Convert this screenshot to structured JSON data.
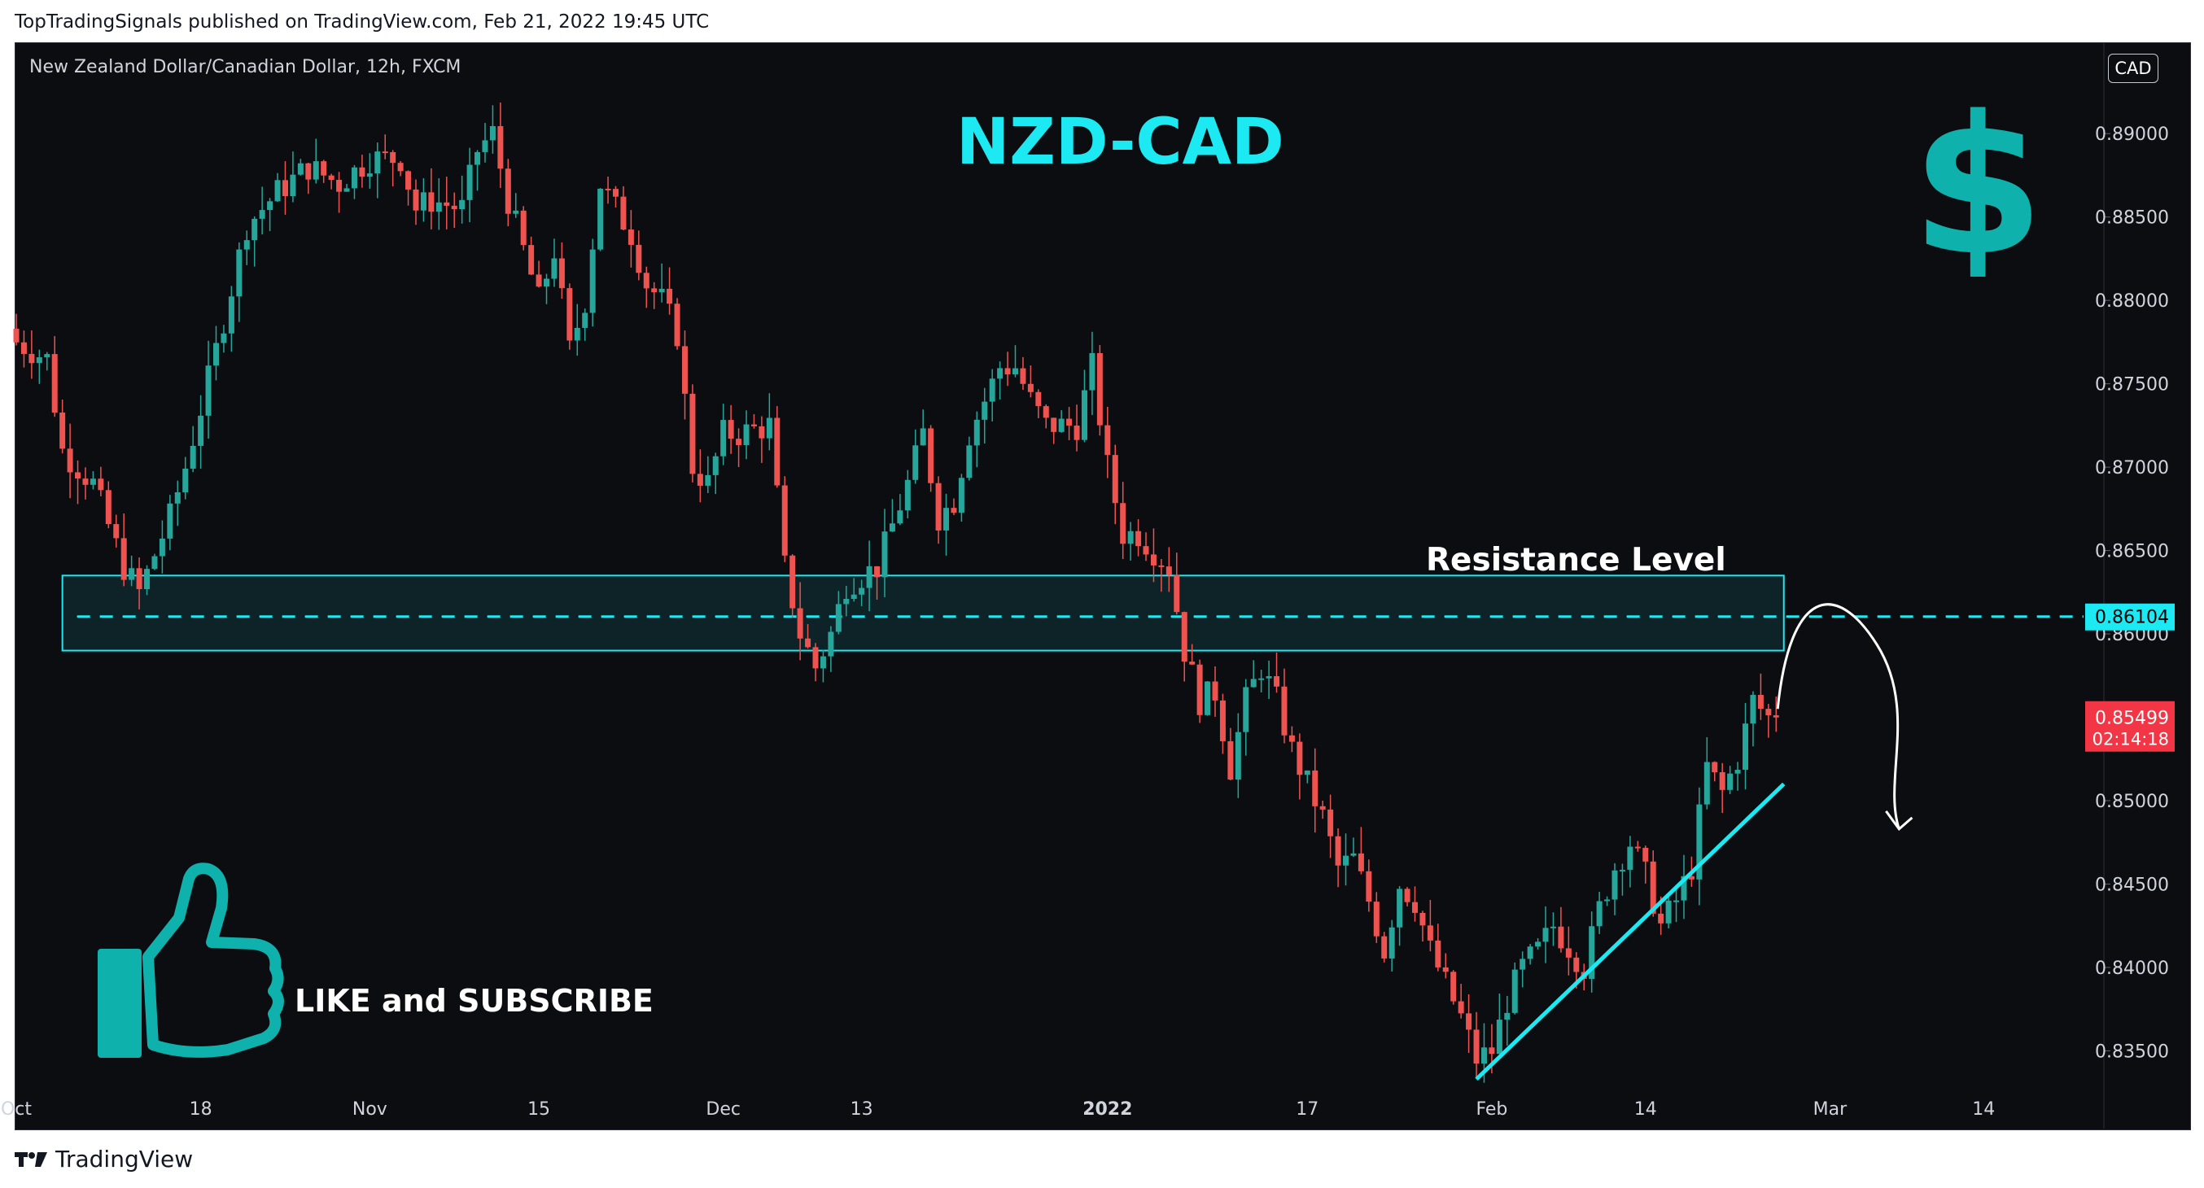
{
  "publisher_caption": "TopTradingSignals published on TradingView.com, Feb 21, 2022 19:45 UTC",
  "pair_title": "New Zealand Dollar/Canadian Dollar, 12h, FXCM",
  "currency_badge": "CAD",
  "big_title": "NZD-CAD",
  "resistance_label": "Resistance Level",
  "like_label": "LIKE and SUBSCRIBE",
  "footer_brand": "TradingView",
  "price_tags": {
    "resistance_price": "0.86104",
    "last_price": "0.85499",
    "countdown": "02:14:18"
  },
  "colors": {
    "background": "#0c0d10",
    "up_candle": "#26a69a",
    "down_candle": "#ef5350",
    "accent_cyan": "#1de9f2",
    "teal_icon": "#0fb1ad",
    "last_price_tag": "#f23645"
  },
  "chart_data": {
    "type": "candlestick",
    "title": "NZD-CAD",
    "subtitle": "New Zealand Dollar/Canadian Dollar, 12h, FXCM",
    "ylim": [
      0.8318,
      0.8945
    ],
    "y_ticks": [
      "0.89000",
      "0.88500",
      "0.88000",
      "0.87500",
      "0.87000",
      "0.86500",
      "0.86000",
      "0.85500",
      "0.85000",
      "0.84500",
      "0.84000",
      "0.83500"
    ],
    "y_tick_values": [
      0.89,
      0.885,
      0.88,
      0.875,
      0.87,
      0.865,
      0.86,
      0.855,
      0.85,
      0.845,
      0.84,
      0.835
    ],
    "x_ticks": [
      "Oct",
      "18",
      "Nov",
      "15",
      "Dec",
      "13",
      "2022",
      "17",
      "Feb",
      "14",
      "Mar",
      "14"
    ],
    "x_tick_positions": [
      0,
      12,
      23,
      34,
      46,
      55,
      71,
      84,
      96,
      106,
      118,
      128
    ],
    "x_range": [
      0,
      130
    ],
    "grid": false,
    "anchors": [
      [
        0,
        0.8775
      ],
      [
        2,
        0.8765
      ],
      [
        3,
        0.871
      ],
      [
        5,
        0.869
      ],
      [
        7,
        0.864
      ],
      [
        8,
        0.8625
      ],
      [
        10,
        0.867
      ],
      [
        11,
        0.87
      ],
      [
        13,
        0.877
      ],
      [
        15,
        0.8845
      ],
      [
        17,
        0.8865
      ],
      [
        19,
        0.888
      ],
      [
        21,
        0.887
      ],
      [
        23,
        0.8885
      ],
      [
        25,
        0.8885
      ],
      [
        26,
        0.8855
      ],
      [
        27,
        0.886
      ],
      [
        29,
        0.8855
      ],
      [
        30,
        0.889
      ],
      [
        31,
        0.89
      ],
      [
        32,
        0.886
      ],
      [
        34,
        0.88
      ],
      [
        35,
        0.883
      ],
      [
        36,
        0.877
      ],
      [
        37,
        0.88
      ],
      [
        38,
        0.887
      ],
      [
        40,
        0.884
      ],
      [
        41,
        0.881
      ],
      [
        42,
        0.88
      ],
      [
        43,
        0.878
      ],
      [
        44,
        0.87
      ],
      [
        45,
        0.869
      ],
      [
        46,
        0.872
      ],
      [
        47,
        0.872
      ],
      [
        49,
        0.8725
      ],
      [
        50,
        0.864
      ],
      [
        51,
        0.86
      ],
      [
        52,
        0.858
      ],
      [
        53,
        0.86
      ],
      [
        54,
        0.863
      ],
      [
        56,
        0.864
      ],
      [
        58,
        0.869
      ],
      [
        59,
        0.872
      ],
      [
        60,
        0.867
      ],
      [
        61,
        0.868
      ],
      [
        62,
        0.872
      ],
      [
        63,
        0.874
      ],
      [
        64,
        0.876
      ],
      [
        65,
        0.876
      ],
      [
        66,
        0.874
      ],
      [
        67,
        0.8725
      ],
      [
        69,
        0.8725
      ],
      [
        70,
        0.876
      ],
      [
        71,
        0.87
      ],
      [
        72,
        0.866
      ],
      [
        73,
        0.866
      ],
      [
        74,
        0.865
      ],
      [
        75,
        0.864
      ],
      [
        76,
        0.859
      ],
      [
        77,
        0.856
      ],
      [
        78,
        0.8565
      ],
      [
        79,
        0.852
      ],
      [
        80,
        0.856
      ],
      [
        81,
        0.858
      ],
      [
        82,
        0.856
      ],
      [
        83,
        0.853
      ],
      [
        84,
        0.851
      ],
      [
        85,
        0.849
      ],
      [
        86,
        0.846
      ],
      [
        87,
        0.8465
      ],
      [
        88,
        0.844
      ],
      [
        89,
        0.841
      ],
      [
        90,
        0.845
      ],
      [
        91,
        0.844
      ],
      [
        92,
        0.841
      ],
      [
        93,
        0.839
      ],
      [
        94,
        0.837
      ],
      [
        95,
        0.8345
      ],
      [
        96,
        0.835
      ],
      [
        97,
        0.838
      ],
      [
        98,
        0.84
      ],
      [
        99,
        0.841
      ],
      [
        100,
        0.8425
      ],
      [
        102,
        0.84
      ],
      [
        103,
        0.8435
      ],
      [
        104,
        0.846
      ],
      [
        105,
        0.8475
      ],
      [
        106,
        0.8455
      ],
      [
        107,
        0.8425
      ],
      [
        108,
        0.844
      ],
      [
        109,
        0.846
      ],
      [
        110,
        0.852
      ],
      [
        111,
        0.8505
      ],
      [
        112,
        0.8525
      ],
      [
        113,
        0.856
      ],
      [
        114,
        0.855
      ]
    ],
    "last_close": 0.85499,
    "resistance_zone": {
      "top": 0.8635,
      "bottom": 0.859,
      "line": 0.86104,
      "x_start": 3,
      "x_end": 115
    },
    "support_trendline": {
      "x1": 95,
      "y1": 0.8333,
      "x2": 115,
      "y2": 0.851
    },
    "projection_arrow": {
      "from": [
        114.6,
        0.8555
      ],
      "peak": [
        116.3,
        0.8613
      ],
      "to": [
        122.5,
        0.8483
      ]
    }
  }
}
